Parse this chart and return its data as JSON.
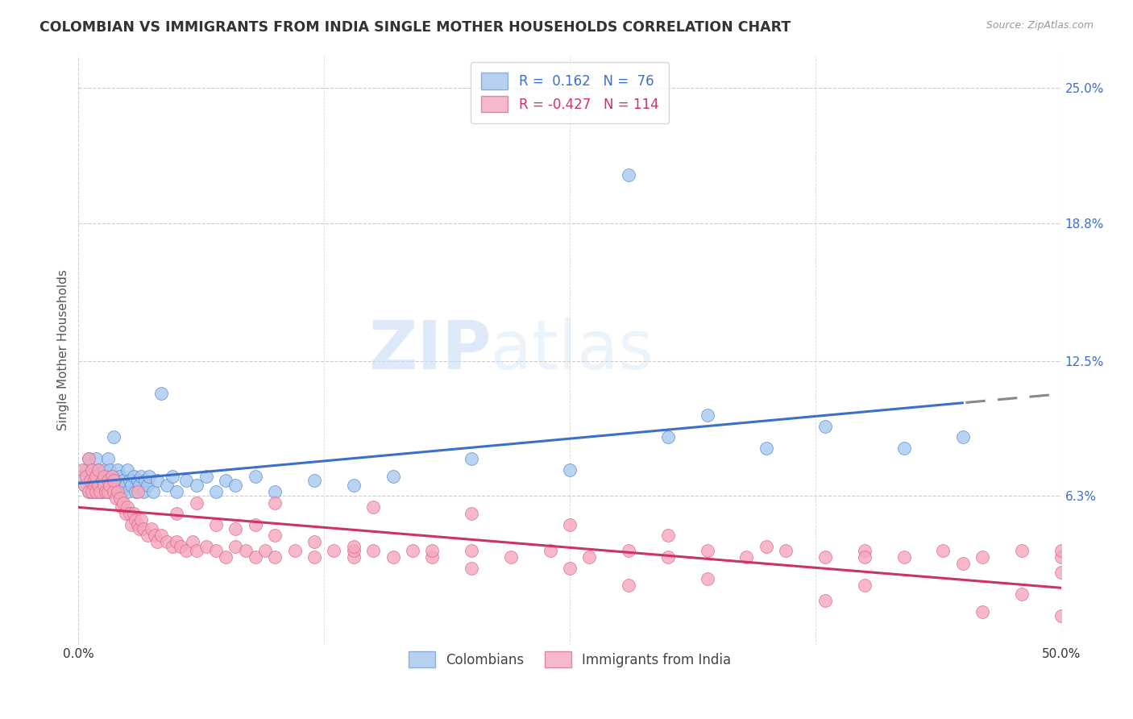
{
  "title": "COLOMBIAN VS IMMIGRANTS FROM INDIA SINGLE MOTHER HOUSEHOLDS CORRELATION CHART",
  "source": "Source: ZipAtlas.com",
  "ylabel": "Single Mother Households",
  "xlim": [
    0.0,
    0.5
  ],
  "ylim": [
    -0.005,
    0.265
  ],
  "blue_R": 0.162,
  "blue_N": 76,
  "pink_R": -0.427,
  "pink_N": 114,
  "blue_label": "Colombians",
  "pink_label": "Immigrants from India",
  "watermark": "ZIPatlas",
  "background_color": "#ffffff",
  "blue_line_color": "#3c6fcc",
  "pink_line_color": "#cc3366",
  "ytick_vals": [
    0.063,
    0.125,
    0.188,
    0.25
  ],
  "ytick_labels": [
    "6.3%",
    "12.5%",
    "18.8%",
    "25.0%"
  ],
  "xtick_vals": [
    0.0,
    0.5
  ],
  "xtick_labels": [
    "0.0%",
    "50.0%"
  ],
  "blue_scatter_color": "#a8c8f0",
  "blue_edge_color": "#5588cc",
  "pink_scatter_color": "#f5a8bc",
  "pink_edge_color": "#dd6688",
  "legend_blue_face": "#b8d0f0",
  "legend_pink_face": "#f5b8cc",
  "blue_scatter_x": [
    0.002,
    0.003,
    0.004,
    0.005,
    0.005,
    0.006,
    0.007,
    0.007,
    0.008,
    0.008,
    0.009,
    0.009,
    0.01,
    0.01,
    0.011,
    0.011,
    0.012,
    0.012,
    0.013,
    0.013,
    0.014,
    0.014,
    0.015,
    0.015,
    0.016,
    0.016,
    0.017,
    0.017,
    0.018,
    0.018,
    0.019,
    0.02,
    0.02,
    0.021,
    0.022,
    0.023,
    0.024,
    0.025,
    0.025,
    0.026,
    0.027,
    0.028,
    0.029,
    0.03,
    0.031,
    0.032,
    0.033,
    0.034,
    0.035,
    0.036,
    0.038,
    0.04,
    0.042,
    0.045,
    0.048,
    0.05,
    0.055,
    0.06,
    0.065,
    0.07,
    0.075,
    0.08,
    0.09,
    0.1,
    0.12,
    0.14,
    0.16,
    0.2,
    0.25,
    0.3,
    0.35,
    0.38,
    0.42,
    0.45,
    0.28,
    0.32
  ],
  "blue_scatter_y": [
    0.072,
    0.068,
    0.075,
    0.065,
    0.08,
    0.07,
    0.065,
    0.075,
    0.068,
    0.072,
    0.065,
    0.08,
    0.07,
    0.075,
    0.065,
    0.068,
    0.072,
    0.065,
    0.075,
    0.07,
    0.068,
    0.072,
    0.065,
    0.08,
    0.07,
    0.075,
    0.068,
    0.072,
    0.065,
    0.09,
    0.07,
    0.068,
    0.075,
    0.072,
    0.065,
    0.07,
    0.068,
    0.075,
    0.065,
    0.07,
    0.068,
    0.072,
    0.065,
    0.07,
    0.068,
    0.072,
    0.065,
    0.07,
    0.068,
    0.072,
    0.065,
    0.07,
    0.11,
    0.068,
    0.072,
    0.065,
    0.07,
    0.068,
    0.072,
    0.065,
    0.07,
    0.068,
    0.072,
    0.065,
    0.07,
    0.068,
    0.072,
    0.08,
    0.075,
    0.09,
    0.085,
    0.095,
    0.085,
    0.09,
    0.21,
    0.1
  ],
  "pink_scatter_x": [
    0.002,
    0.003,
    0.004,
    0.005,
    0.005,
    0.006,
    0.007,
    0.007,
    0.008,
    0.008,
    0.009,
    0.009,
    0.01,
    0.01,
    0.011,
    0.012,
    0.013,
    0.013,
    0.014,
    0.015,
    0.015,
    0.016,
    0.017,
    0.018,
    0.018,
    0.019,
    0.02,
    0.021,
    0.022,
    0.023,
    0.024,
    0.025,
    0.026,
    0.027,
    0.028,
    0.029,
    0.03,
    0.031,
    0.032,
    0.033,
    0.035,
    0.037,
    0.039,
    0.04,
    0.042,
    0.045,
    0.048,
    0.05,
    0.052,
    0.055,
    0.058,
    0.06,
    0.065,
    0.07,
    0.075,
    0.08,
    0.085,
    0.09,
    0.095,
    0.1,
    0.11,
    0.12,
    0.13,
    0.14,
    0.15,
    0.16,
    0.17,
    0.18,
    0.2,
    0.22,
    0.24,
    0.26,
    0.28,
    0.3,
    0.32,
    0.34,
    0.36,
    0.38,
    0.4,
    0.42,
    0.44,
    0.46,
    0.48,
    0.5,
    0.5,
    0.1,
    0.15,
    0.2,
    0.25,
    0.3,
    0.35,
    0.4,
    0.45,
    0.5,
    0.08,
    0.12,
    0.18,
    0.25,
    0.32,
    0.4,
    0.48,
    0.05,
    0.07,
    0.1,
    0.14,
    0.2,
    0.28,
    0.38,
    0.46,
    0.5,
    0.03,
    0.06,
    0.09,
    0.14
  ],
  "pink_scatter_y": [
    0.075,
    0.068,
    0.072,
    0.065,
    0.08,
    0.07,
    0.065,
    0.075,
    0.068,
    0.07,
    0.065,
    0.072,
    0.068,
    0.075,
    0.065,
    0.07,
    0.068,
    0.072,
    0.065,
    0.07,
    0.065,
    0.068,
    0.072,
    0.065,
    0.07,
    0.062,
    0.065,
    0.062,
    0.058,
    0.06,
    0.055,
    0.058,
    0.055,
    0.05,
    0.055,
    0.052,
    0.05,
    0.048,
    0.052,
    0.048,
    0.045,
    0.048,
    0.045,
    0.042,
    0.045,
    0.042,
    0.04,
    0.042,
    0.04,
    0.038,
    0.042,
    0.038,
    0.04,
    0.038,
    0.035,
    0.04,
    0.038,
    0.035,
    0.038,
    0.035,
    0.038,
    0.035,
    0.038,
    0.035,
    0.038,
    0.035,
    0.038,
    0.035,
    0.038,
    0.035,
    0.038,
    0.035,
    0.038,
    0.035,
    0.038,
    0.035,
    0.038,
    0.035,
    0.038,
    0.035,
    0.038,
    0.035,
    0.038,
    0.035,
    0.038,
    0.06,
    0.058,
    0.055,
    0.05,
    0.045,
    0.04,
    0.035,
    0.032,
    0.028,
    0.048,
    0.042,
    0.038,
    0.03,
    0.025,
    0.022,
    0.018,
    0.055,
    0.05,
    0.045,
    0.038,
    0.03,
    0.022,
    0.015,
    0.01,
    0.008,
    0.065,
    0.06,
    0.05,
    0.04
  ]
}
